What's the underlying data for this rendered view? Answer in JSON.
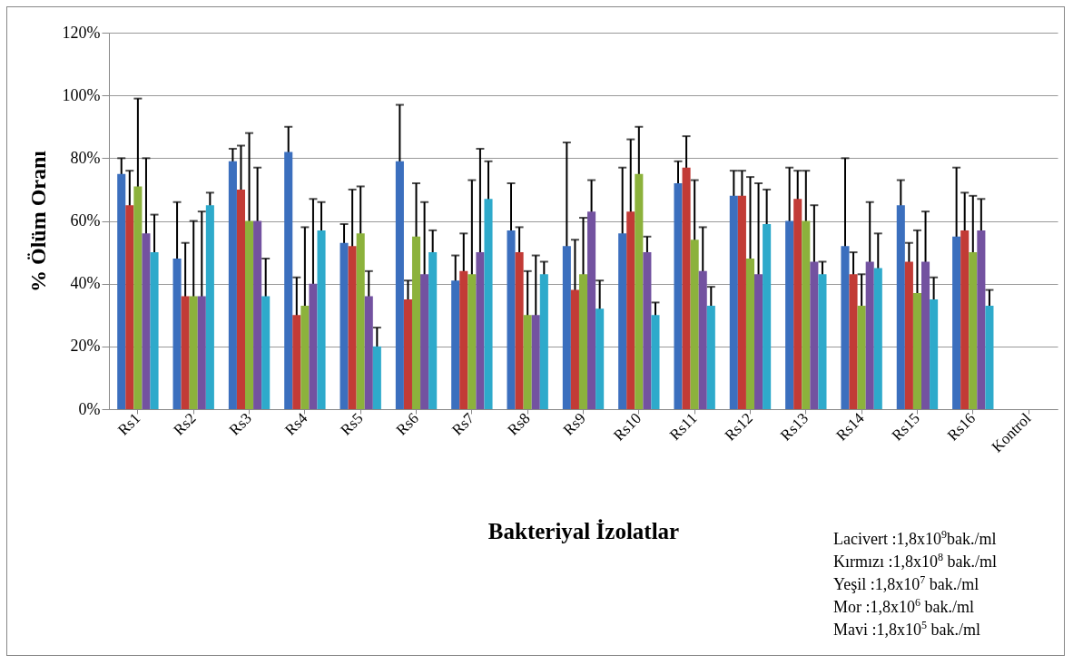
{
  "chart_data": {
    "type": "bar",
    "xlabel": "Bakteriyal İzolatlar",
    "ylabel": "% Ölüm Oranı",
    "categories": [
      "Rs1",
      "Rs2",
      "Rs3",
      "Rs4",
      "Rs5",
      "Rs6",
      "Rs7",
      "Rs8",
      "Rs9",
      "Rs10",
      "Rs11",
      "Rs12",
      "Rs13",
      "Rs14",
      "Rs15",
      "Rs16",
      "Kontrol"
    ],
    "series": [
      {
        "color": "#3b6fbe",
        "values": [
          75,
          48,
          79,
          82,
          53,
          79,
          41,
          57,
          52,
          56,
          72,
          68,
          60,
          52,
          65,
          55,
          0
        ],
        "errors": [
          5,
          18,
          4,
          8,
          6,
          18,
          8,
          15,
          33,
          21,
          7,
          8,
          17,
          28,
          8,
          22,
          null
        ]
      },
      {
        "color": "#c23b36",
        "values": [
          65,
          36,
          70,
          30,
          52,
          35,
          44,
          50,
          38,
          63,
          77,
          68,
          67,
          43,
          47,
          57,
          0
        ],
        "errors": [
          11,
          17,
          14,
          12,
          18,
          6,
          12,
          8,
          16,
          23,
          10,
          8,
          9,
          7,
          6,
          12,
          null
        ]
      },
      {
        "color": "#8cb23c",
        "values": [
          71,
          36,
          60,
          33,
          56,
          55,
          43,
          30,
          43,
          75,
          54,
          48,
          60,
          33,
          37,
          50,
          0
        ],
        "errors": [
          28,
          24,
          28,
          25,
          15,
          17,
          30,
          14,
          18,
          15,
          19,
          26,
          16,
          10,
          20,
          18,
          null
        ]
      },
      {
        "color": "#7352a0",
        "values": [
          56,
          36,
          60,
          40,
          36,
          43,
          50,
          30,
          63,
          50,
          44,
          43,
          47,
          47,
          47,
          57,
          0
        ],
        "errors": [
          24,
          27,
          17,
          27,
          8,
          23,
          33,
          19,
          10,
          5,
          14,
          29,
          18,
          19,
          16,
          10,
          null
        ]
      },
      {
        "color": "#2eaacb",
        "values": [
          50,
          65,
          36,
          57,
          20,
          50,
          67,
          43,
          32,
          30,
          33,
          59,
          43,
          45,
          35,
          33,
          0
        ],
        "errors": [
          12,
          4,
          12,
          9,
          6,
          7,
          12,
          4,
          9,
          4,
          6,
          11,
          4,
          11,
          7,
          5,
          null
        ]
      }
    ],
    "ylim": [
      0,
      120
    ],
    "yticks": [
      {
        "value": 0,
        "label": "0%"
      },
      {
        "value": 20,
        "label": "20%"
      },
      {
        "value": 40,
        "label": "40%"
      },
      {
        "value": 60,
        "label": "60%"
      },
      {
        "value": 80,
        "label": "80%"
      },
      {
        "value": 100,
        "label": "100%"
      },
      {
        "value": 120,
        "label": "120%"
      }
    ],
    "grid": "y",
    "annotations": [
      "Lacivert :1,8x10$^{9}$bak./ml",
      "Kırmızı :1,8x10$^{8}$ bak./ml",
      "Yeşil :1,8x10$^{7}$ bak./ml",
      "Mor :1,8x10$^{6}$ bak./ml",
      "Mavi :1,8x10$^{5}$ bak./ml"
    ]
  }
}
